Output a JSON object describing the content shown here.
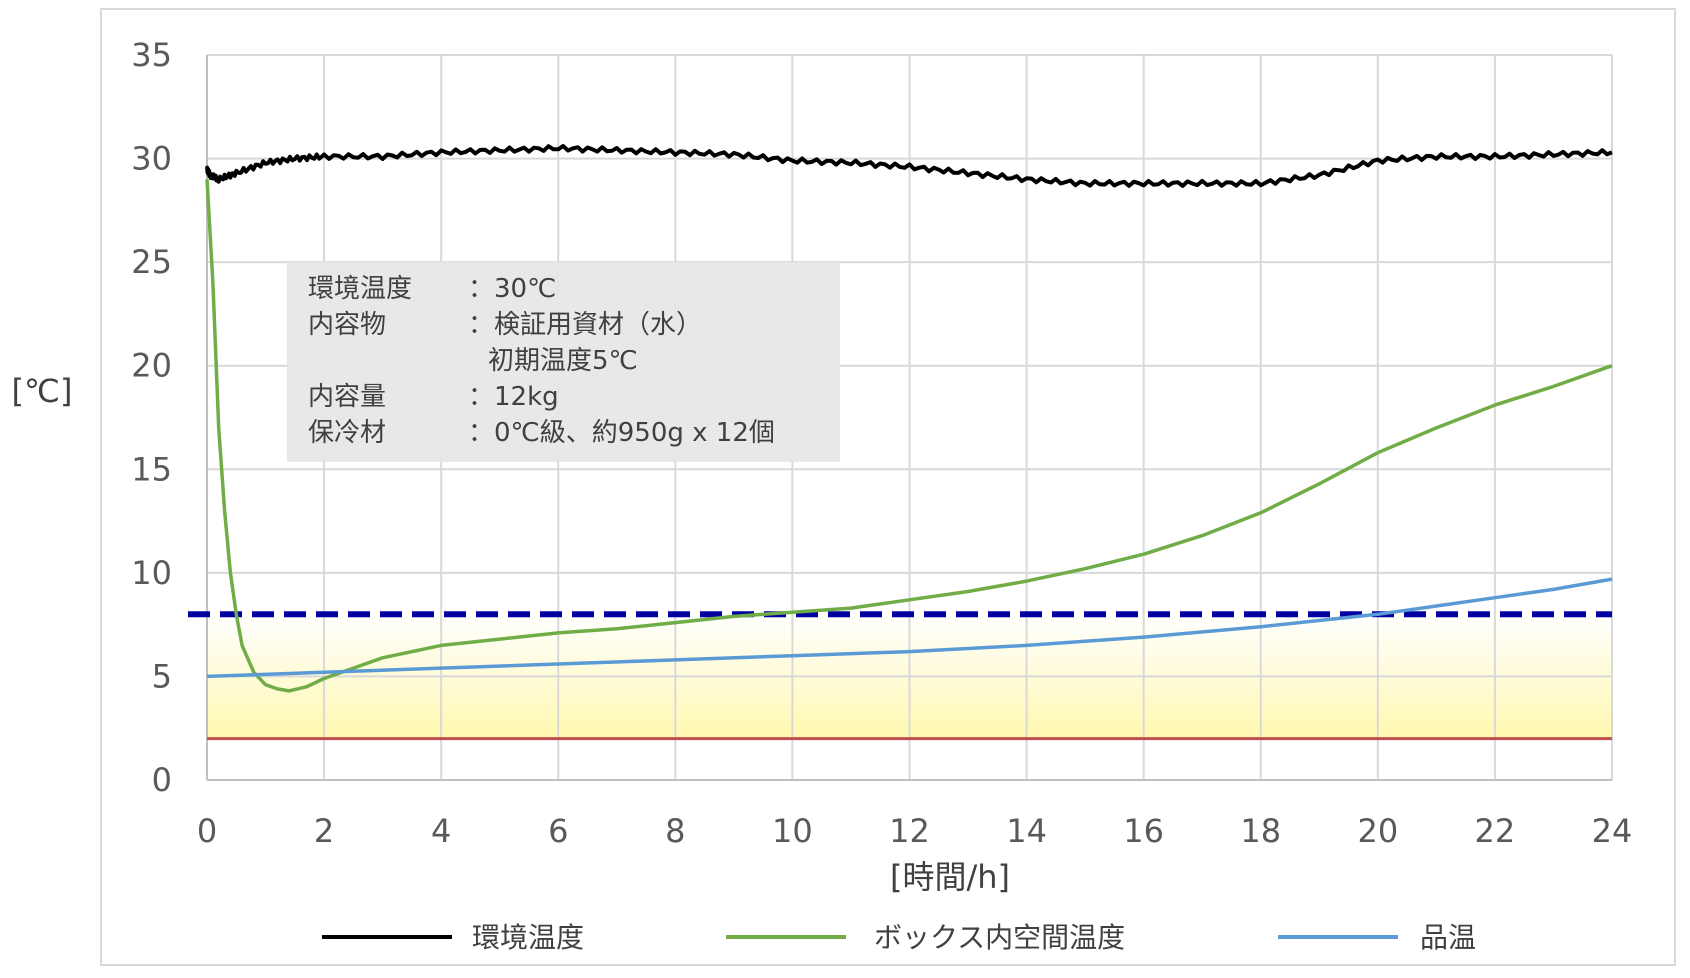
{
  "chart_data": {
    "type": "line",
    "xlabel": "[時間/h]",
    "ylabel": "[℃]",
    "xlim": [
      0,
      24
    ],
    "ylim": [
      0,
      35
    ],
    "xticks": [
      0,
      2,
      4,
      6,
      8,
      10,
      12,
      14,
      16,
      18,
      20,
      22,
      24
    ],
    "yticks": [
      0,
      5,
      10,
      15,
      20,
      25,
      30,
      35
    ],
    "grid": true,
    "legend_position": "bottom",
    "series": [
      {
        "name": "環境温度",
        "color": "#000000",
        "x": [
          0,
          0.05,
          0.2,
          0.5,
          1,
          1.5,
          2,
          3,
          4,
          5,
          6,
          7,
          8,
          9,
          10,
          11,
          12,
          13,
          14,
          15,
          16,
          17,
          18,
          19,
          20,
          21,
          22,
          23,
          24
        ],
        "y": [
          29.5,
          29.2,
          29.0,
          29.3,
          29.8,
          30.0,
          30.1,
          30.1,
          30.3,
          30.4,
          30.5,
          30.4,
          30.3,
          30.2,
          29.9,
          29.8,
          29.6,
          29.3,
          29.0,
          28.8,
          28.8,
          28.8,
          28.8,
          29.2,
          29.9,
          30.1,
          30.1,
          30.2,
          30.3
        ]
      },
      {
        "name": "ボックス内空間温度",
        "color": "#70ad47",
        "x": [
          0,
          0.1,
          0.2,
          0.3,
          0.4,
          0.5,
          0.6,
          0.8,
          1.0,
          1.2,
          1.4,
          1.7,
          2,
          2.5,
          3,
          4,
          5,
          6,
          7,
          8,
          9,
          10,
          11,
          12,
          13,
          14,
          15,
          16,
          17,
          18,
          19,
          20,
          21,
          22,
          23,
          24
        ],
        "y": [
          29.0,
          24.0,
          17.0,
          13.0,
          10.0,
          8.0,
          6.5,
          5.2,
          4.6,
          4.4,
          4.3,
          4.5,
          4.9,
          5.4,
          5.9,
          6.5,
          6.8,
          7.1,
          7.3,
          7.6,
          7.9,
          8.1,
          8.3,
          8.7,
          9.1,
          9.6,
          10.2,
          10.9,
          11.8,
          12.9,
          14.3,
          15.8,
          17.0,
          18.1,
          19.0,
          20.0
        ]
      },
      {
        "name": "品温",
        "color": "#5b9bd5",
        "x": [
          0,
          2,
          4,
          6,
          8,
          10,
          12,
          14,
          16,
          18,
          20,
          21,
          22,
          23,
          24
        ],
        "y": [
          5.0,
          5.2,
          5.4,
          5.6,
          5.8,
          6.0,
          6.2,
          6.5,
          6.9,
          7.4,
          8.0,
          8.4,
          8.8,
          9.2,
          9.7
        ]
      }
    ],
    "reference_lines": [
      {
        "y": 8,
        "color": "#0000a0",
        "style": "dashed"
      },
      {
        "y": 2,
        "color": "#c0504d",
        "style": "solid"
      }
    ],
    "shaded_band": {
      "y_from": 2,
      "y_to": 8,
      "color_top": "#ffffff",
      "color_bottom": "#fff8b0"
    },
    "annotation": {
      "rows": [
        {
          "label": "環境温度",
          "value": "：30℃"
        },
        {
          "label": "内容物",
          "value": "：検証用資材（水）"
        },
        {
          "label": "",
          "value": "初期温度5℃"
        },
        {
          "label": "内容量",
          "value": "：12kg"
        },
        {
          "label": "保冷材",
          "value": "：0℃級、約950g x 12個"
        }
      ]
    }
  }
}
